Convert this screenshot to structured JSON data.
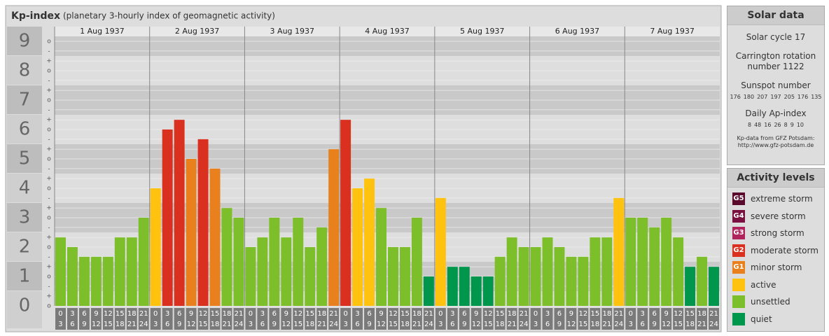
{
  "chart_data": {
    "type": "bar",
    "title": "Kp-index",
    "subtitle": "(planetary 3-hourly index of geomagnetic activity)",
    "days": [
      "1 Aug 1937",
      "2 Aug 1937",
      "3 Aug 1937",
      "4 Aug 1937",
      "5 Aug 1937",
      "6 Aug 1937",
      "7 Aug 1937"
    ],
    "hours": [
      [
        "0",
        "3"
      ],
      [
        "3",
        "6"
      ],
      [
        "6",
        "9"
      ],
      [
        "9",
        "12"
      ],
      [
        "12",
        "15"
      ],
      [
        "15",
        "18"
      ],
      [
        "18",
        "21"
      ],
      [
        "21",
        "24"
      ]
    ],
    "values": [
      2.33,
      2,
      1.67,
      1.67,
      1.67,
      2.33,
      2.33,
      3,
      4,
      6,
      6.33,
      5,
      5.67,
      4.67,
      3.33,
      3,
      2,
      2.33,
      3,
      2.33,
      3,
      2,
      2.67,
      5.33,
      6.33,
      4,
      4.33,
      3.33,
      2,
      2,
      3,
      1,
      3.67,
      1.33,
      1.33,
      1,
      1,
      1.67,
      2.33,
      2,
      2,
      2.33,
      2,
      1.67,
      1.67,
      2.33,
      2.33,
      3.67,
      3,
      3,
      2.67,
      3,
      2.33,
      1.33,
      1.67,
      1.33
    ],
    "colors": [
      "#7dbf2a",
      "#7dbf2a",
      "#7dbf2a",
      "#7dbf2a",
      "#7dbf2a",
      "#7dbf2a",
      "#7dbf2a",
      "#7dbf2a",
      "#ffc20e",
      "#d9301f",
      "#d9301f",
      "#e8801e",
      "#d9301f",
      "#e8801e",
      "#7dbf2a",
      "#7dbf2a",
      "#7dbf2a",
      "#7dbf2a",
      "#7dbf2a",
      "#7dbf2a",
      "#7dbf2a",
      "#7dbf2a",
      "#7dbf2a",
      "#e8801e",
      "#d9301f",
      "#ffc20e",
      "#ffc20e",
      "#7dbf2a",
      "#7dbf2a",
      "#7dbf2a",
      "#7dbf2a",
      "#00964b",
      "#ffc20e",
      "#00964b",
      "#00964b",
      "#00964b",
      "#00964b",
      "#7dbf2a",
      "#7dbf2a",
      "#7dbf2a",
      "#7dbf2a",
      "#7dbf2a",
      "#7dbf2a",
      "#7dbf2a",
      "#7dbf2a",
      "#7dbf2a",
      "#7dbf2a",
      "#ffc20e",
      "#7dbf2a",
      "#7dbf2a",
      "#7dbf2a",
      "#7dbf2a",
      "#7dbf2a",
      "#00964b",
      "#7dbf2a",
      "#00964b"
    ],
    "ylim": [
      0,
      9.5
    ],
    "yticks": [
      0,
      1,
      2,
      3,
      4,
      5,
      6,
      7,
      8,
      9
    ],
    "minor_ticks": [
      {
        "value": 0,
        "label": "o"
      },
      {
        "value": 0.33,
        "label": "+"
      },
      {
        "value": 0.67,
        "label": "-"
      },
      {
        "value": 1,
        "label": "o"
      },
      {
        "value": 1.33,
        "label": "+"
      },
      {
        "value": 1.67,
        "label": "-"
      },
      {
        "value": 2,
        "label": "o"
      },
      {
        "value": 2.33,
        "label": "+"
      },
      {
        "value": 2.67,
        "label": "-"
      },
      {
        "value": 3,
        "label": "o"
      },
      {
        "value": 3.33,
        "label": "+"
      },
      {
        "value": 3.67,
        "label": "-"
      },
      {
        "value": 4,
        "label": "o"
      },
      {
        "value": 4.33,
        "label": "+"
      },
      {
        "value": 4.67,
        "label": "-"
      },
      {
        "value": 5,
        "label": "o"
      },
      {
        "value": 5.33,
        "label": "+"
      },
      {
        "value": 5.67,
        "label": "-"
      },
      {
        "value": 6,
        "label": "o"
      },
      {
        "value": 6.33,
        "label": "+"
      },
      {
        "value": 6.67,
        "label": "-"
      },
      {
        "value": 7,
        "label": "o"
      },
      {
        "value": 7.33,
        "label": "+"
      },
      {
        "value": 7.67,
        "label": "-"
      },
      {
        "value": 8,
        "label": "o"
      },
      {
        "value": 8.33,
        "label": "+"
      },
      {
        "value": 8.67,
        "label": "-"
      },
      {
        "value": 9,
        "label": "o"
      }
    ],
    "grid": true
  },
  "solar_data": {
    "title": "Solar data",
    "cycle": "Solar cycle 17",
    "carrington": "Carrington rotation number 1122",
    "sunspot_label": "Sunspot number",
    "sunspot": [
      176,
      180,
      207,
      197,
      205,
      176,
      135
    ],
    "ap_label": "Daily Ap-index",
    "ap": [
      8,
      48,
      16,
      26,
      8,
      9,
      10
    ],
    "source": "Kp-data from GFZ Potsdam:",
    "url": "http://www.gfz-potsdam.de"
  },
  "activity_levels": {
    "title": "Activity levels",
    "items": [
      {
        "badge": "G5",
        "name": "extreme storm",
        "color": "#5a0a2c"
      },
      {
        "badge": "G4",
        "name": "severe storm",
        "color": "#7a1040"
      },
      {
        "badge": "G3",
        "name": "strong storm",
        "color": "#b0245e"
      },
      {
        "badge": "G2",
        "name": "moderate storm",
        "color": "#d9301f"
      },
      {
        "badge": "G1",
        "name": "minor storm",
        "color": "#e8801e"
      },
      {
        "name": "active",
        "color": "#ffc20e"
      },
      {
        "name": "unsettled",
        "color": "#7dbf2a"
      },
      {
        "name": "quiet",
        "color": "#00964b"
      }
    ]
  }
}
